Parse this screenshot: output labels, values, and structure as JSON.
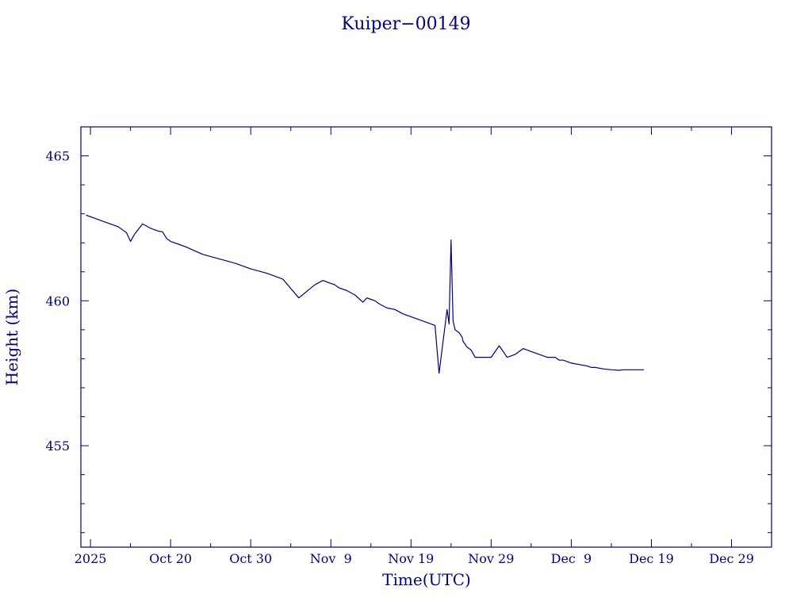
{
  "chart_data": {
    "type": "line",
    "title": "Kuiper−00149",
    "xlabel": "Time(UTC)",
    "ylabel": "Height (km)",
    "xlim": [
      "2025-10-08T19:20",
      "2026-01-02T23:50"
    ],
    "ylim": [
      451.5,
      466.0
    ],
    "x_ticks": [
      {
        "label": "2025",
        "date": "2025-10-10"
      },
      {
        "label": "Oct 20",
        "date": "2025-10-20"
      },
      {
        "label": "Oct 30",
        "date": "2025-10-30"
      },
      {
        "label": "Nov  9",
        "date": "2025-11-09"
      },
      {
        "label": "Nov 19",
        "date": "2025-11-19"
      },
      {
        "label": "Nov 29",
        "date": "2025-11-29"
      },
      {
        "label": "Dec  9",
        "date": "2025-12-09"
      },
      {
        "label": "Dec 19",
        "date": "2025-12-19"
      },
      {
        "label": "Dec 29",
        "date": "2025-12-29"
      }
    ],
    "y_ticks": [
      {
        "label": "455",
        "value": 455
      },
      {
        "label": "460",
        "value": 460
      },
      {
        "label": "465",
        "value": 465
      }
    ],
    "grid": false,
    "series": [
      {
        "color": "#000080",
        "x": [
          "2025-10-09T12:00",
          "2025-10-10T12:00",
          "2025-10-11T12:00",
          "2025-10-12T12:00",
          "2025-10-13T12:00",
          "2025-10-14T00:00",
          "2025-10-14T12:00",
          "2025-10-15T00:00",
          "2025-10-15T12:00",
          "2025-10-16T12:00",
          "2025-10-17T12:00",
          "2025-10-18T12:00",
          "2025-10-19T00:00",
          "2025-10-19T12:00",
          "2025-10-20T00:00",
          "2025-10-21T00:00",
          "2025-10-22T00:00",
          "2025-10-24T00:00",
          "2025-10-26T00:00",
          "2025-10-28T00:00",
          "2025-10-30T00:00",
          "2025-11-01T00:00",
          "2025-11-03T00:00",
          "2025-11-05T00:00",
          "2025-11-07T00:00",
          "2025-11-08T00:00",
          "2025-11-08T12:00",
          "2025-11-09T00:00",
          "2025-11-09T12:00",
          "2025-11-10T00:00",
          "2025-11-11T00:00",
          "2025-11-12T00:00",
          "2025-11-13T00:00",
          "2025-11-13T12:00",
          "2025-11-14T00:00",
          "2025-11-14T12:00",
          "2025-11-15T00:00",
          "2025-11-16T00:00",
          "2025-11-17T00:00",
          "2025-11-18T00:00",
          "2025-11-19T00:00",
          "2025-11-20T00:00",
          "2025-11-21T00:00",
          "2025-11-22T00:00",
          "2025-11-22T12:00",
          "2025-11-23T12:00",
          "2025-11-23T18:00",
          "2025-11-24T00:00",
          "2025-11-24T06:00",
          "2025-11-24T12:00",
          "2025-11-24T18:00",
          "2025-11-25T00:00",
          "2025-11-25T03:00",
          "2025-11-25T06:00",
          "2025-11-25T09:00",
          "2025-11-25T12:00",
          "2025-11-25T18:00",
          "2025-11-26T00:00",
          "2025-11-26T12:00",
          "2025-11-27T00:00",
          "2025-11-28T00:00",
          "2025-11-29T00:00",
          "2025-11-30T00:00",
          "2025-12-01T00:00",
          "2025-12-02T00:00",
          "2025-12-03T00:00",
          "2025-12-04T00:00",
          "2025-12-05T00:00",
          "2025-12-06T00:00",
          "2025-12-07T00:00",
          "2025-12-07T12:00",
          "2025-12-08T00:00",
          "2025-12-09T00:00",
          "2025-12-10T00:00",
          "2025-12-11T00:00",
          "2025-12-11T12:00",
          "2025-12-12T00:00",
          "2025-12-13T00:00",
          "2025-12-14T00:00",
          "2025-12-15T00:00",
          "2025-12-15T12:00",
          "2025-12-16T00:00",
          "2025-12-17T00:00",
          "2025-12-18T00:00"
        ],
        "y": [
          462.95,
          462.85,
          462.75,
          462.65,
          462.55,
          462.45,
          462.35,
          462.05,
          462.3,
          462.65,
          462.5,
          462.4,
          462.38,
          462.15,
          462.05,
          461.95,
          461.85,
          461.6,
          461.45,
          461.3,
          461.1,
          460.95,
          460.75,
          460.1,
          460.55,
          460.7,
          460.65,
          460.6,
          460.55,
          460.45,
          460.35,
          460.2,
          459.95,
          460.1,
          460.05,
          460.0,
          459.9,
          459.75,
          459.7,
          459.55,
          459.45,
          459.35,
          459.25,
          459.15,
          457.5,
          459.7,
          459.2,
          462.1,
          459.3,
          459.0,
          458.95,
          458.9,
          458.85,
          458.8,
          458.75,
          458.6,
          458.5,
          458.4,
          458.3,
          458.05,
          458.05,
          458.05,
          458.45,
          458.05,
          458.15,
          458.35,
          458.25,
          458.15,
          458.05,
          458.05,
          457.95,
          457.95,
          457.85,
          457.8,
          457.75,
          457.7,
          457.7,
          457.65,
          457.62,
          457.6,
          457.62,
          457.62,
          457.62,
          457.62
        ]
      }
    ]
  }
}
